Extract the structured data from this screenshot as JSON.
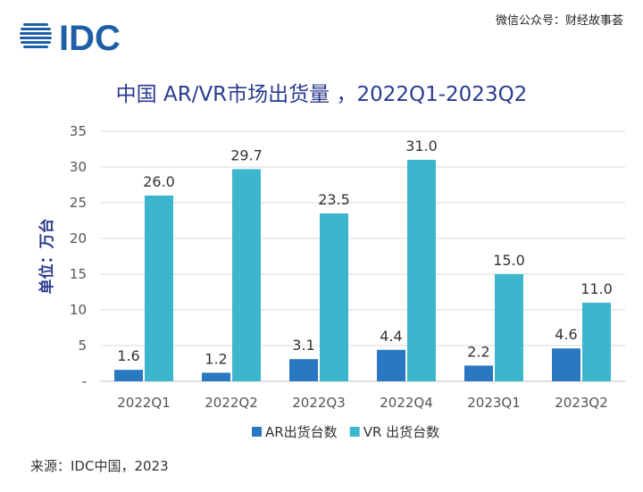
{
  "brand": {
    "logo_text": "IDC",
    "watermark": "微信公众号：财经故事荟"
  },
  "source_note": "来源：IDC中国，2023",
  "chart_data": {
    "type": "bar",
    "title": "中国 AR/VR市场出货量 ，2022Q1-2023Q2",
    "ylabel": "单位：万台",
    "xlabel": "",
    "ylim": [
      0,
      35
    ],
    "yticks": [
      0,
      5,
      10,
      15,
      20,
      25,
      30,
      35
    ],
    "ytick_labels": [
      "-",
      "5",
      "10",
      "15",
      "20",
      "25",
      "30",
      "35"
    ],
    "grid": true,
    "legend_position": "bottom",
    "categories": [
      "2022Q1",
      "2022Q2",
      "2022Q3",
      "2022Q4",
      "2023Q1",
      "2023Q2"
    ],
    "series": [
      {
        "name": "AR出货台数",
        "color": "#2b78c2",
        "values": [
          1.6,
          1.2,
          3.1,
          4.4,
          2.2,
          4.6
        ]
      },
      {
        "name": "VR 出货台数",
        "color": "#3cb6cc",
        "values": [
          26.0,
          29.7,
          23.5,
          31.0,
          15.0,
          11.0
        ]
      }
    ]
  },
  "colors": {
    "title": "#2a3b8f",
    "axis_text": "#555555",
    "grid": "#d9d9d9",
    "logo": "#1f5fa8"
  }
}
